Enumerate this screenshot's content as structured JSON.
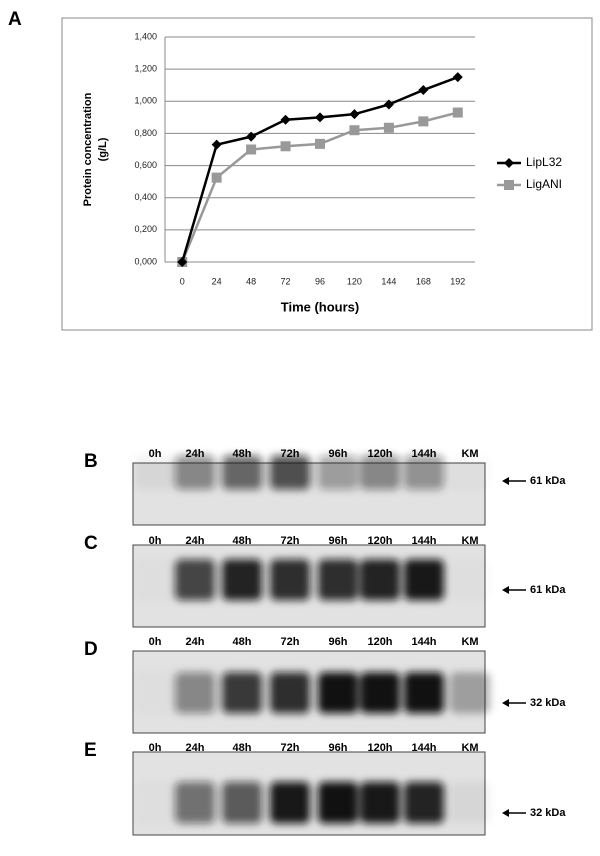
{
  "panel_label": "A",
  "chart_data": {
    "type": "line",
    "categories": [
      "0",
      "24",
      "48",
      "72",
      "96",
      "120",
      "144",
      "168",
      "192"
    ],
    "xlabel": "Time (hours)",
    "ylabel": [
      "Protein concentration",
      "(g/L)"
    ],
    "ylim": [
      0,
      1.4
    ],
    "yticks": [
      {
        "value": 0,
        "label": "0,000"
      },
      {
        "value": 0.2,
        "label": "0,200"
      },
      {
        "value": 0.4,
        "label": "0,400"
      },
      {
        "value": 0.6,
        "label": "0,600"
      },
      {
        "value": 0.8,
        "label": "0,800"
      },
      {
        "value": 1.0,
        "label": "1,000"
      },
      {
        "value": 1.2,
        "label": "1,200"
      },
      {
        "value": 1.4,
        "label": "1,400"
      }
    ],
    "grid": true,
    "legend": "right",
    "series": [
      {
        "name": "LipL32",
        "color": "#000000",
        "marker": "diamond",
        "values": [
          0,
          0.73,
          0.78,
          0.885,
          0.9,
          0.92,
          0.98,
          1.07,
          1.15
        ]
      },
      {
        "name": "LigANI",
        "color": "#999999",
        "marker": "square",
        "values": [
          0,
          0.525,
          0.7,
          0.72,
          0.735,
          0.82,
          0.835,
          0.875,
          0.93
        ]
      }
    ]
  },
  "blots": [
    {
      "label": "B",
      "lanes": [
        "0h",
        "24h",
        "48h",
        "72h",
        "96h",
        "120h",
        "144h",
        "KM"
      ],
      "marker": "61 kDa"
    },
    {
      "label": "C",
      "lanes": [
        "0h",
        "24h",
        "48h",
        "72h",
        "96h",
        "120h",
        "144h",
        "KM"
      ],
      "marker": "61 kDa"
    },
    {
      "label": "D",
      "lanes": [
        "0h",
        "24h",
        "48h",
        "72h",
        "96h",
        "120h",
        "144h",
        "KM"
      ],
      "marker": "32 kDa"
    },
    {
      "label": "E",
      "lanes": [
        "0h",
        "24h",
        "48h",
        "72h",
        "96h",
        "120h",
        "144h",
        "KM"
      ],
      "marker": "32 kDa"
    }
  ]
}
